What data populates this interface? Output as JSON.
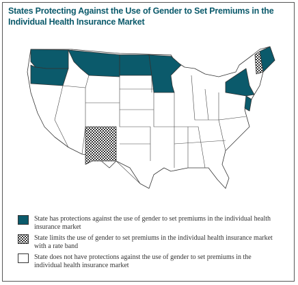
{
  "header": {
    "title": "States Protecting Against the Use of Gender to Set Premiums in the Individual Health Insurance Market"
  },
  "legend": [
    {
      "label": "State has protections against the use of gender to set premiums in the individual health insurance market",
      "fill": "#0b5a6b"
    },
    {
      "label": "State limits the use of gender to set premiums in the individual health insurance market with a rate band",
      "fill": "hatch"
    },
    {
      "label": "State does not have protections against the use of gender to set premiums in the individual health insurance market",
      "fill": "#ffffff"
    }
  ]
}
